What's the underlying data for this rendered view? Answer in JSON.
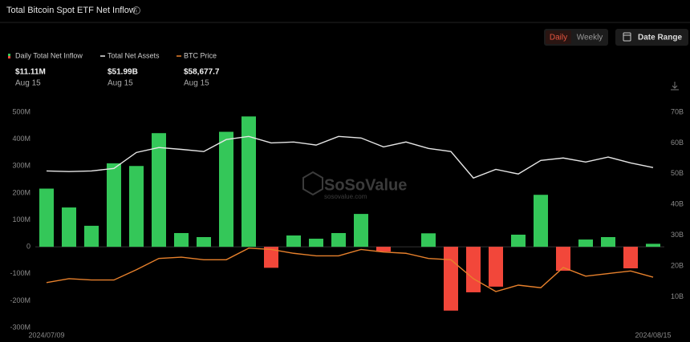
{
  "ui": {
    "daily": "Daily",
    "weekly": "Weekly",
    "date_range": "Date Range",
    "watermark": "SoSoValue",
    "watermark_url": "sosovalue.com"
  },
  "chart_data": {
    "type": "bar",
    "title": "Total Bitcoin Spot ETF Net Inflow",
    "categories": [
      "2024/07/09",
      null,
      null,
      null,
      null,
      null,
      null,
      null,
      null,
      null,
      null,
      null,
      null,
      null,
      null,
      null,
      null,
      null,
      null,
      null,
      null,
      null,
      null,
      null,
      null,
      null,
      null,
      "2024/08/15"
    ],
    "series": [
      {
        "name": "Daily Total Net Inflow",
        "type": "bar",
        "color": "#34c759",
        "negative_color": "#f2473a",
        "current_label": "$11.11M",
        "current_date": "Aug 15",
        "values": [
          216,
          146,
          78,
          310,
          300,
          422,
          51,
          36,
          427,
          484,
          -78,
          42,
          30,
          51,
          122,
          -18,
          0,
          50,
          -237,
          -169,
          -148,
          45,
          193,
          -89,
          27,
          36,
          -80,
          11.11
        ]
      },
      {
        "name": "Total Net Assets",
        "type": "line",
        "axis": "y2",
        "color": "#e6e6e6",
        "current_label": "$51.99B",
        "current_date": "Aug 15",
        "values": [
          50.9,
          50.7,
          50.9,
          51.7,
          56.9,
          58.5,
          57.9,
          57.2,
          61.1,
          62.1,
          60.0,
          60.3,
          59.3,
          62.1,
          61.6,
          58.7,
          60.3,
          58.2,
          57.2,
          48.6,
          51.4,
          49.9,
          54.3,
          55.1,
          53.8,
          55.4,
          53.5,
          51.99
        ]
      },
      {
        "name": "BTC Price",
        "type": "line",
        "axis": "y3",
        "color": "#e8812c",
        "current_label": "$58,677.7",
        "current_date": "Aug 15",
        "values": [
          57000,
          58200,
          57800,
          57800,
          61000,
          64500,
          64900,
          64100,
          64100,
          67700,
          67300,
          66100,
          65300,
          65300,
          67300,
          66500,
          66100,
          64500,
          64100,
          58200,
          54200,
          56200,
          55400,
          61700,
          59000,
          59800,
          60600,
          58677.7
        ]
      }
    ],
    "ylim": [
      -300,
      500
    ],
    "yticks": [
      {
        "value": 500,
        "label": "500M"
      },
      {
        "value": 400,
        "label": "400M"
      },
      {
        "value": 300,
        "label": "300M"
      },
      {
        "value": 200,
        "label": "200M"
      },
      {
        "value": 100,
        "label": "100M"
      },
      0,
      {
        "value": -100,
        "label": "-100M"
      },
      {
        "value": -200,
        "label": "-200M"
      },
      {
        "value": -300,
        "label": "-300M"
      }
    ],
    "y2lim": [
      0,
      70
    ],
    "y2ticks": [
      {
        "value": 70,
        "label": "70B"
      },
      {
        "value": 60,
        "label": "60B"
      },
      {
        "value": 50,
        "label": "50B"
      },
      {
        "value": 40,
        "label": "40B"
      },
      {
        "value": 30,
        "label": "30B"
      },
      {
        "value": 20,
        "label": "20B"
      },
      {
        "value": 10,
        "label": "10B"
      }
    ],
    "y3lim": [
      43000,
      110000
    ]
  }
}
